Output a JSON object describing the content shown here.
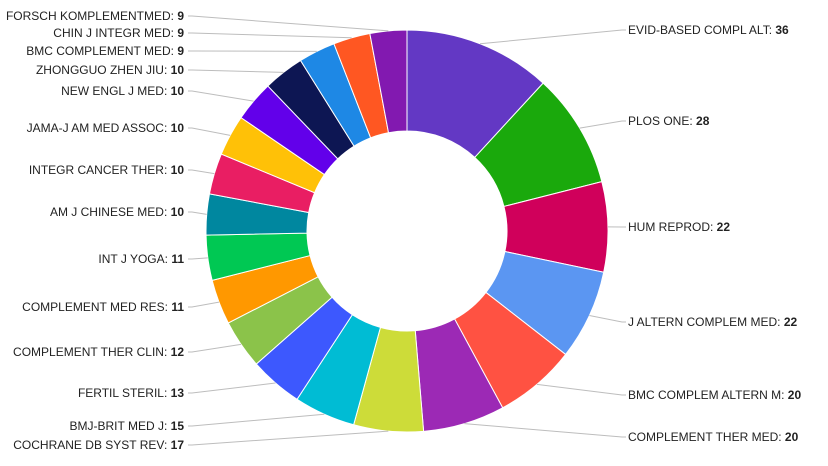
{
  "chart_data": {
    "type": "pie",
    "donut": true,
    "title": "",
    "series": [
      {
        "label": "EVID-BASED COMPL ALT",
        "value": 36,
        "color": "#6338c4"
      },
      {
        "label": "PLOS ONE",
        "value": 28,
        "color": "#1aa90c"
      },
      {
        "label": "HUM REPROD",
        "value": 22,
        "color": "#d0005b"
      },
      {
        "label": "J ALTERN COMPLEM MED",
        "value": 22,
        "color": "#5b96f2"
      },
      {
        "label": "BMC COMPLEM ALTERN M",
        "value": 20,
        "color": "#ff5242"
      },
      {
        "label": "COMPLEMENT THER MED",
        "value": 20,
        "color": "#9c29b5"
      },
      {
        "label": "COCHRANE DB SYST REV",
        "value": 17,
        "color": "#cddc39"
      },
      {
        "label": "BMJ-BRIT MED J",
        "value": 15,
        "color": "#00bcd4"
      },
      {
        "label": "FERTIL STERIL",
        "value": 13,
        "color": "#3d58fe"
      },
      {
        "label": "COMPLEMENT THER CLIN",
        "value": 12,
        "color": "#8bc34a"
      },
      {
        "label": "COMPLEMENT MED RES",
        "value": 11,
        "color": "#ff9800"
      },
      {
        "label": "INT J YOGA",
        "value": 11,
        "color": "#00c853"
      },
      {
        "label": "AM J CHINESE MED",
        "value": 10,
        "color": "#00879f"
      },
      {
        "label": "INTEGR CANCER THER",
        "value": 10,
        "color": "#e91e63"
      },
      {
        "label": "JAMA-J AM MED ASSOC",
        "value": 10,
        "color": "#ffc107"
      },
      {
        "label": "NEW ENGL J MED",
        "value": 10,
        "color": "#6200ea"
      },
      {
        "label": "ZHONGGUO ZHEN JIU",
        "value": 10,
        "color": "#0d1653"
      },
      {
        "label": "BMC COMPLEMENT MED",
        "value": 9,
        "color": "#1e88e5"
      },
      {
        "label": "CHIN J INTEGR MED",
        "value": 9,
        "color": "#ff5722"
      },
      {
        "label": "FORSCH KOMPLEMENTMED",
        "value": 9,
        "color": "#8219b0"
      }
    ]
  }
}
